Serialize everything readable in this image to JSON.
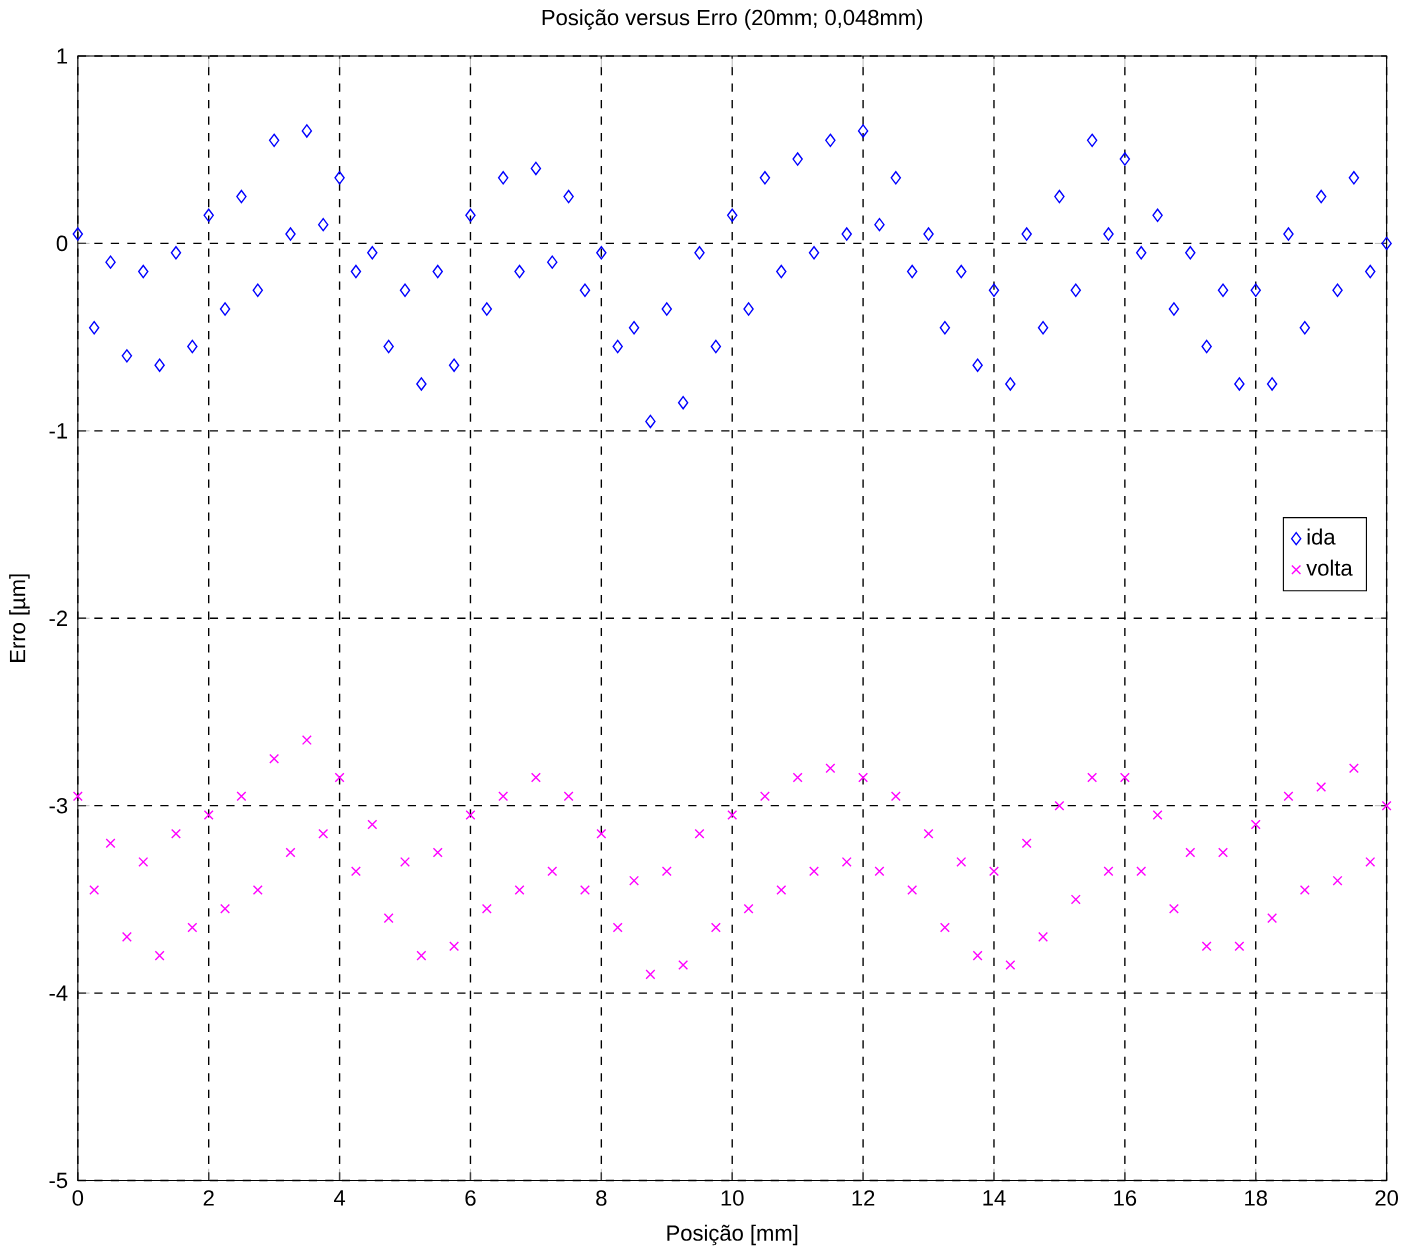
{
  "chart_data": {
    "type": "scatter",
    "title": "Posição versus Erro  (20mm; 0,048mm)",
    "xlabel": "Posição [mm]",
    "ylabel": "Erro [µm]",
    "x": [
      0,
      0.25,
      0.5,
      0.75,
      1,
      1.25,
      1.5,
      1.75,
      2,
      2.25,
      2.5,
      2.75,
      3,
      3.25,
      3.5,
      3.75,
      4,
      4.25,
      4.5,
      4.75,
      5,
      5.25,
      5.5,
      5.75,
      6,
      6.25,
      6.5,
      6.75,
      7,
      7.25,
      7.5,
      7.75,
      8,
      8.25,
      8.5,
      8.75,
      9,
      9.25,
      9.5,
      9.75,
      10,
      10.25,
      10.5,
      10.75,
      11,
      11.25,
      11.5,
      11.75,
      12,
      12.25,
      12.5,
      12.75,
      13,
      13.25,
      13.5,
      13.75,
      14,
      14.25,
      14.5,
      14.75,
      15,
      15.25,
      15.5,
      15.75,
      16,
      16.25,
      16.5,
      16.75,
      17,
      17.25,
      17.5,
      17.75,
      18,
      18.25,
      18.5,
      18.75,
      19,
      19.25,
      19.5,
      19.75,
      20
    ],
    "series": [
      {
        "name": "ida",
        "color": "#0000ff",
        "marker": "diamond",
        "values": [
          0.05,
          -0.45,
          -0.1,
          -0.6,
          -0.15,
          -0.65,
          -0.05,
          -0.55,
          0.15,
          -0.35,
          0.25,
          -0.25,
          0.55,
          0.05,
          0.6,
          0.1,
          0.35,
          -0.15,
          -0.05,
          -0.55,
          -0.25,
          -0.75,
          -0.15,
          -0.65,
          0.15,
          -0.35,
          0.35,
          -0.15,
          0.4,
          -0.1,
          0.25,
          -0.25,
          -0.05,
          -0.55,
          -0.45,
          -0.95,
          -0.35,
          -0.85,
          -0.05,
          -0.55,
          0.15,
          -0.35,
          0.35,
          -0.15,
          0.45,
          -0.05,
          0.55,
          0.05,
          0.6,
          0.1,
          0.35,
          -0.15,
          0.05,
          -0.45,
          -0.15,
          -0.65,
          -0.25,
          -0.75,
          0.05,
          -0.45,
          0.25,
          -0.25,
          0.55,
          0.05,
          0.45,
          -0.05,
          0.15,
          -0.35,
          -0.05,
          -0.55,
          -0.25,
          -0.75,
          -0.25,
          -0.75,
          0.05,
          -0.45,
          0.25,
          -0.25,
          0.35,
          -0.15,
          0.0
        ]
      },
      {
        "name": "volta",
        "color": "#ff00ff",
        "marker": "cross",
        "values": [
          -2.95,
          -3.45,
          -3.2,
          -3.7,
          -3.3,
          -3.8,
          -3.15,
          -3.65,
          -3.05,
          -3.55,
          -2.95,
          -3.45,
          -2.75,
          -3.25,
          -2.65,
          -3.15,
          -2.85,
          -3.35,
          -3.1,
          -3.6,
          -3.3,
          -3.8,
          -3.25,
          -3.75,
          -3.05,
          -3.55,
          -2.95,
          -3.45,
          -2.85,
          -3.35,
          -2.95,
          -3.45,
          -3.15,
          -3.65,
          -3.4,
          -3.9,
          -3.35,
          -3.85,
          -3.15,
          -3.65,
          -3.05,
          -3.55,
          -2.95,
          -3.45,
          -2.85,
          -3.35,
          -2.8,
          -3.3,
          -2.85,
          -3.35,
          -2.95,
          -3.45,
          -3.15,
          -3.65,
          -3.3,
          -3.8,
          -3.35,
          -3.85,
          -3.2,
          -3.7,
          -3.0,
          -3.5,
          -2.85,
          -3.35,
          -2.85,
          -3.35,
          -3.05,
          -3.55,
          -3.25,
          -3.75,
          -3.25,
          -3.75,
          -3.1,
          -3.6,
          -2.95,
          -3.45,
          -2.9,
          -3.4,
          -2.8,
          -3.3,
          -3.0
        ]
      }
    ],
    "xlim": [
      0,
      20
    ],
    "ylim": [
      -5,
      1
    ],
    "xticks": [
      0,
      2,
      4,
      6,
      8,
      10,
      12,
      14,
      16,
      18,
      20
    ],
    "yticks": [
      -5,
      -4,
      -3,
      -2,
      -1,
      0,
      1
    ],
    "grid": true,
    "legend": "right"
  }
}
